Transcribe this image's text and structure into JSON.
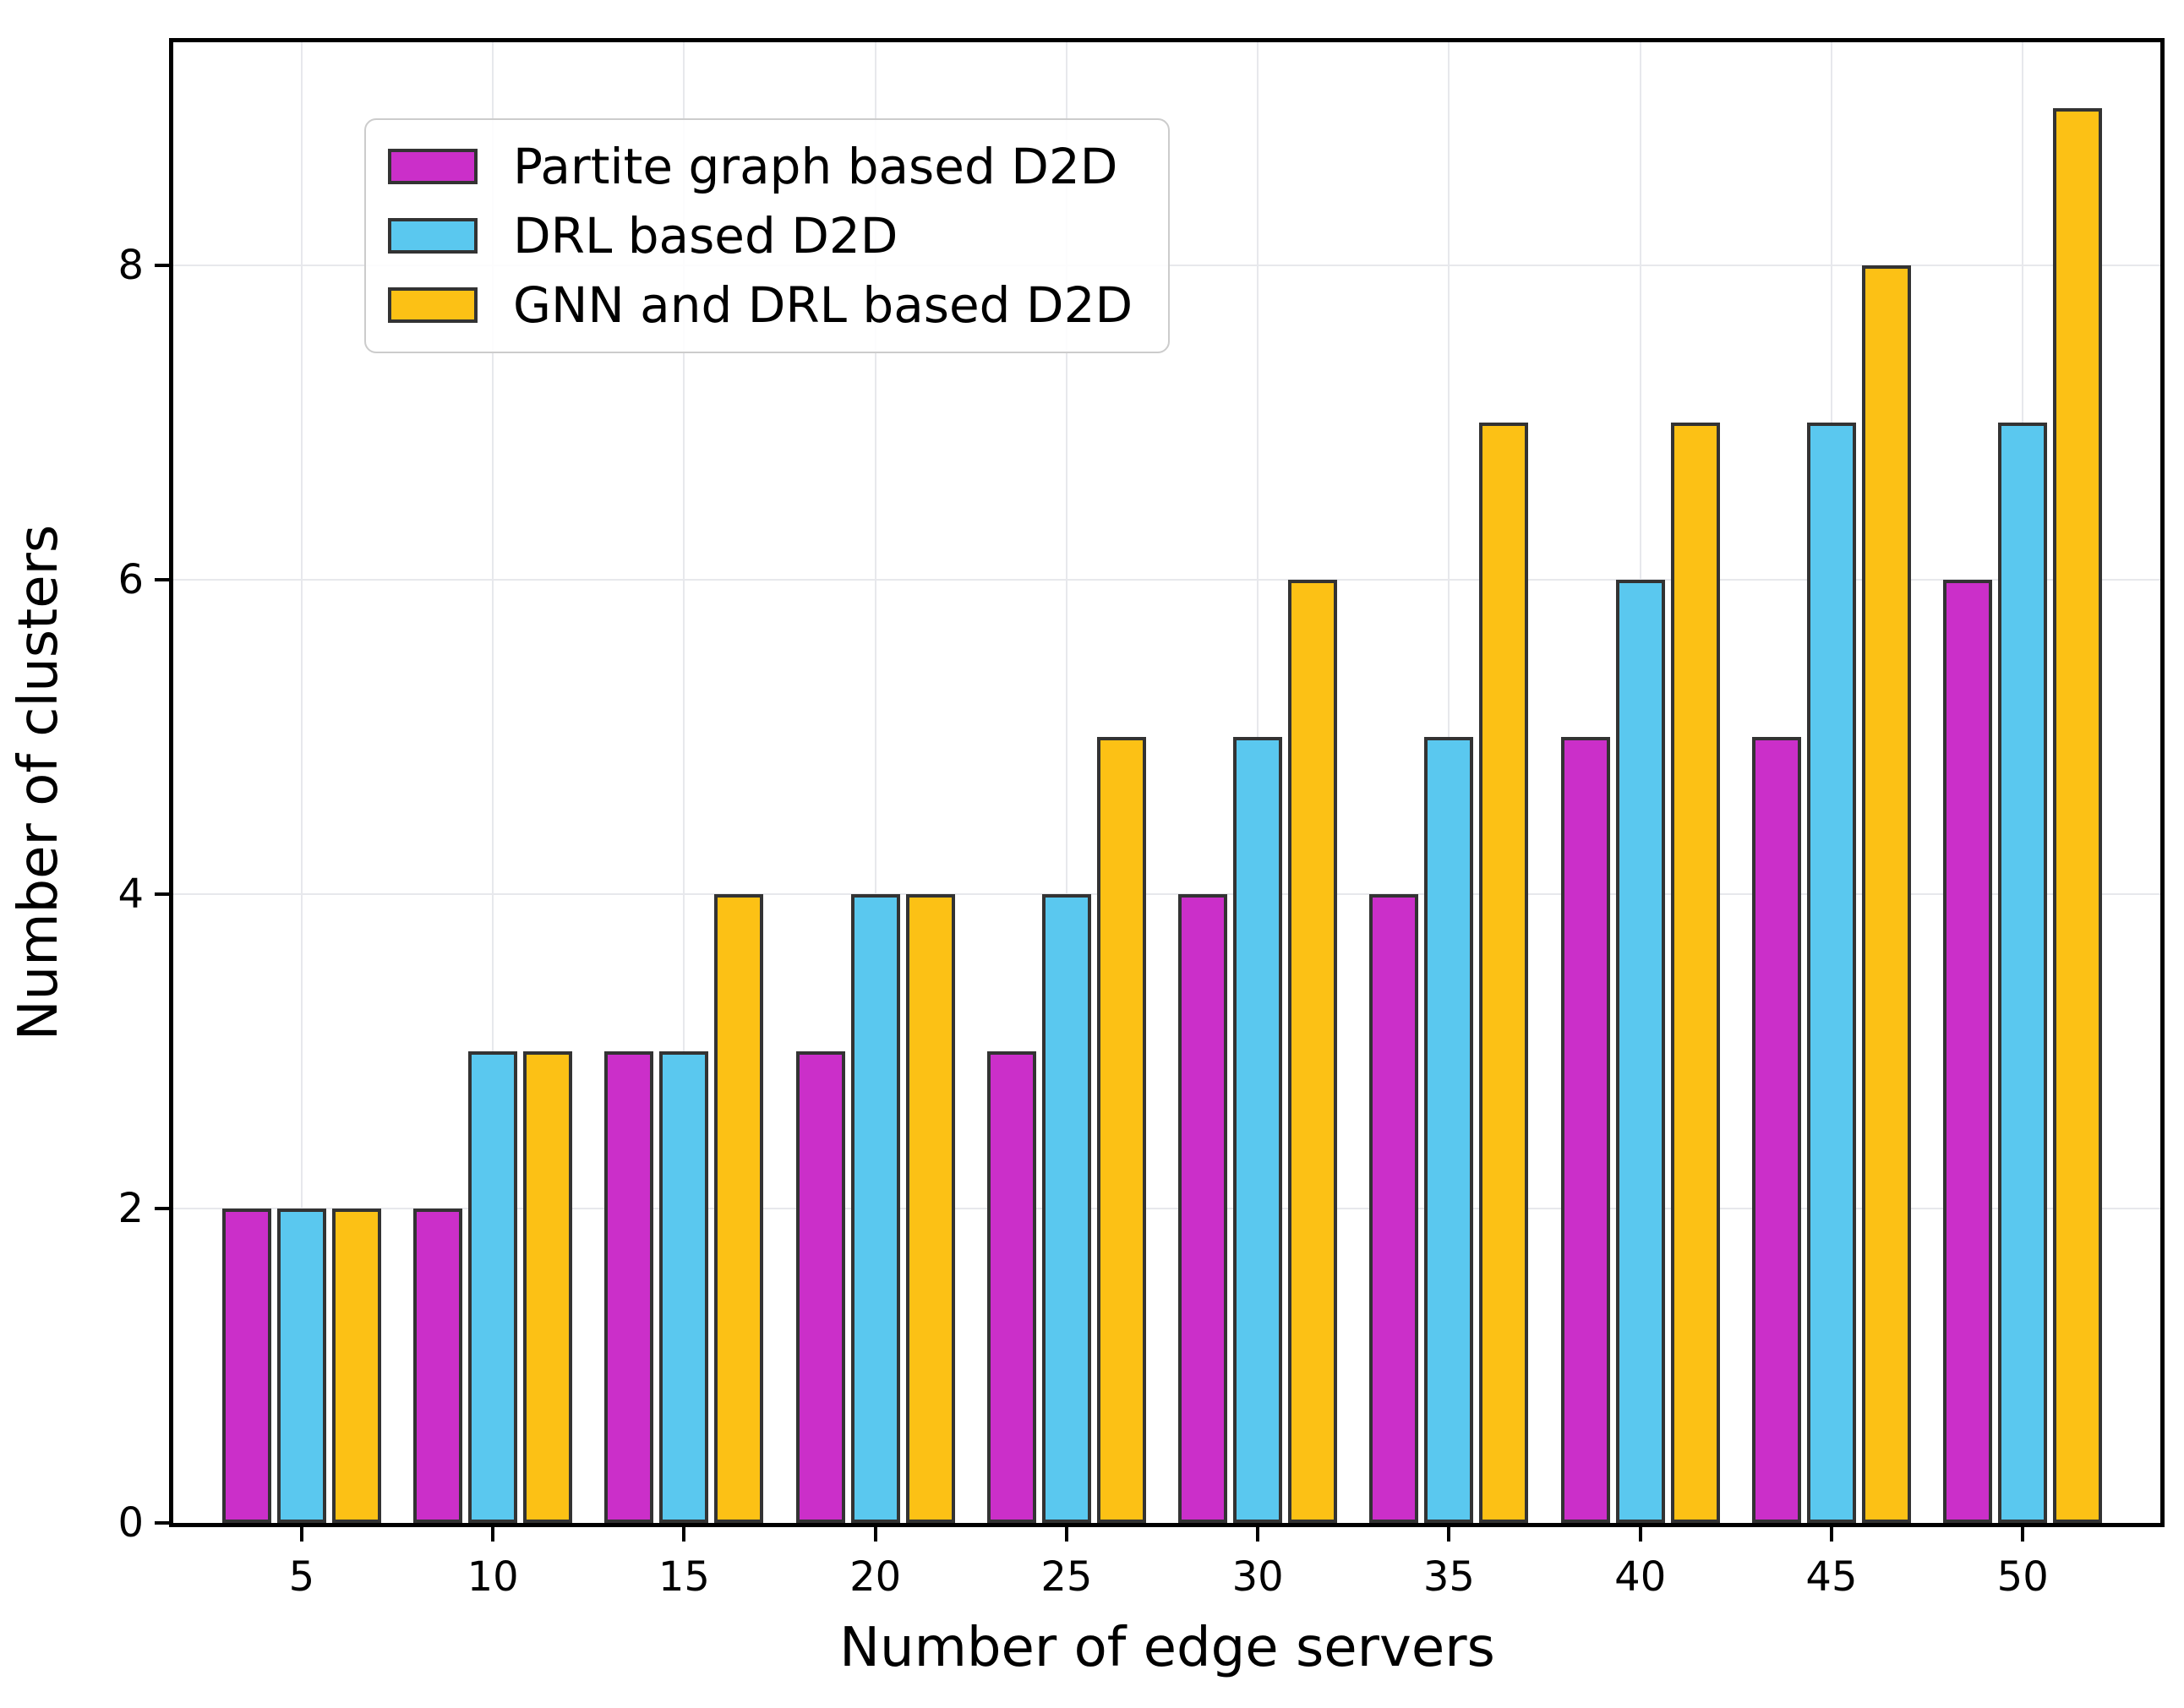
{
  "chart_data": {
    "type": "bar",
    "title": "",
    "xlabel": "Number of edge servers",
    "ylabel": "Number of clusters",
    "categories": [
      5,
      10,
      15,
      20,
      25,
      30,
      35,
      40,
      45,
      50
    ],
    "series": [
      {
        "name": "Partite graph based D2D",
        "color": "#cb2fc9",
        "values": [
          2,
          2,
          3,
          3,
          3,
          4,
          4,
          5,
          5,
          6
        ]
      },
      {
        "name": "DRL based D2D",
        "color": "#5ac8ef",
        "values": [
          2,
          3,
          3,
          4,
          4,
          5,
          5,
          6,
          7,
          7
        ]
      },
      {
        "name": "GNN and DRL based D2D",
        "color": "#fcc115",
        "values": [
          2,
          3,
          4,
          4,
          5,
          6,
          7,
          7,
          8,
          9
        ]
      }
    ],
    "ylim": [
      0,
      9.42
    ],
    "yticks": [
      0,
      2,
      4,
      6,
      8
    ],
    "grid": true,
    "legend_position": "upper left",
    "colors": {
      "bar_edge": "#333333",
      "grid": "#e7e8ec",
      "spine": "#000000",
      "text": "#000000",
      "legend_border": "#cccccc",
      "background": "#ffffff"
    }
  }
}
